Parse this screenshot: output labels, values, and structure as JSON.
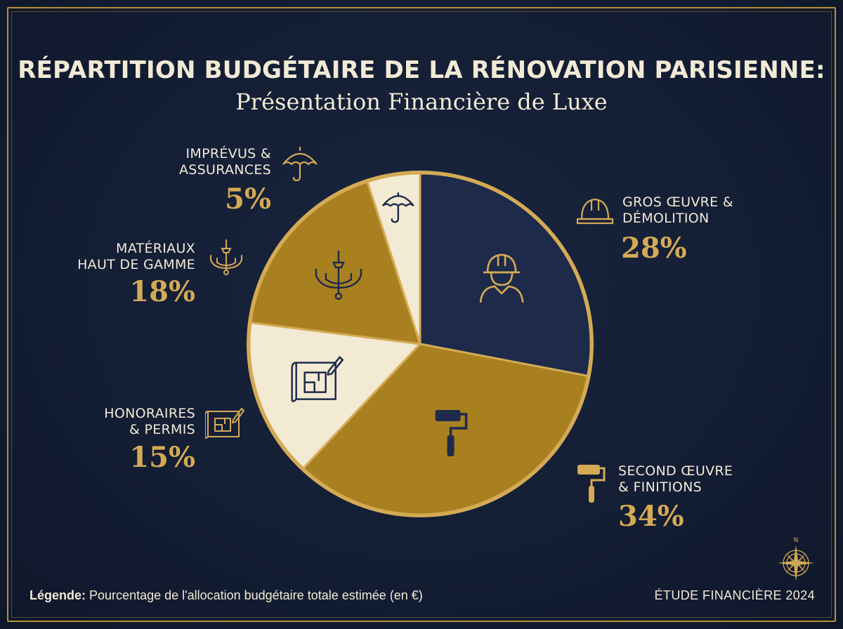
{
  "title": "RÉPARTITION BUDGÉTAIRE DE LA RÉNOVATION PARISIENNE:",
  "subtitle": "Présentation Financière de Luxe",
  "chart_data": {
    "type": "pie",
    "unit": "%",
    "slices": [
      {
        "id": "gros",
        "label_lines": [
          "GROS ŒUVRE &",
          "DÉMOLITION"
        ],
        "value": 28,
        "value_label": "28%",
        "color": "#1d2a4a",
        "icon": "worker-helmet-icon"
      },
      {
        "id": "second",
        "label_lines": [
          "SECOND ŒUVRE",
          "& FINITIONS"
        ],
        "value": 34,
        "value_label": "34%",
        "color": "#a8801f",
        "icon": "paint-roller-icon"
      },
      {
        "id": "honoraires",
        "label_lines": [
          "HONORAIRES",
          "& PERMIS"
        ],
        "value": 15,
        "value_label": "15%",
        "color": "#f3ead3",
        "icon": "blueprint-icon"
      },
      {
        "id": "materiaux",
        "label_lines": [
          "MATÉRIAUX",
          "HAUT DE GAMME"
        ],
        "value": 18,
        "value_label": "18%",
        "color": "#a8801f",
        "icon": "chandelier-icon"
      },
      {
        "id": "imprevus",
        "label_lines": [
          "IMPRÉVUS &",
          "ASSURANCES"
        ],
        "value": 5,
        "value_label": "5%",
        "color": "#f3ead3",
        "icon": "umbrella-icon"
      }
    ],
    "start": "12 o'clock",
    "direction": "clockwise",
    "outline_color": "#d4aa55"
  },
  "legend": {
    "key": "Légende:",
    "text": "Pourcentage de l'allocation budgétaire totale estimée (en €)"
  },
  "footer": "ÉTUDE FINANCIÈRE 2024",
  "compass_letter": "N"
}
